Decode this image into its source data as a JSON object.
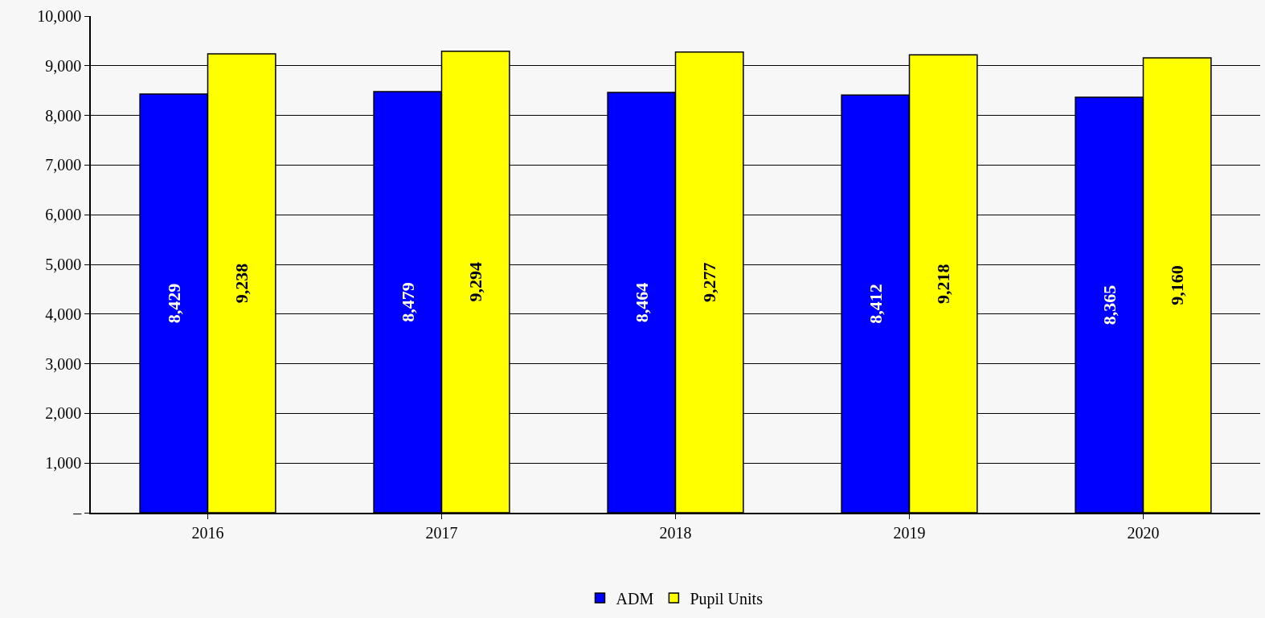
{
  "chart_data": {
    "type": "bar",
    "categories": [
      "2016",
      "2017",
      "2018",
      "2019",
      "2020"
    ],
    "series": [
      {
        "name": "ADM",
        "color": "#0000ff",
        "values": [
          8429,
          8479,
          8464,
          8412,
          8365
        ],
        "value_labels": [
          "8,429",
          "8,479",
          "8,464",
          "8,412",
          "8,365"
        ]
      },
      {
        "name": "Pupil Units",
        "color": "#ffff00",
        "values": [
          9238,
          9294,
          9277,
          9218,
          9160
        ],
        "value_labels": [
          "9,238",
          "9,294",
          "9,277",
          "9,218",
          "9,160"
        ]
      }
    ],
    "ylim": [
      0,
      10000
    ],
    "yticks": [
      {
        "value": 0,
        "label": "–"
      },
      {
        "value": 1000,
        "label": "1,000"
      },
      {
        "value": 2000,
        "label": "2,000"
      },
      {
        "value": 3000,
        "label": "3,000"
      },
      {
        "value": 4000,
        "label": "4,000"
      },
      {
        "value": 5000,
        "label": "5,000"
      },
      {
        "value": 6000,
        "label": "6,000"
      },
      {
        "value": 7000,
        "label": "7,000"
      },
      {
        "value": 8000,
        "label": "8,000"
      },
      {
        "value": 9000,
        "label": "9,000"
      },
      {
        "value": 10000,
        "label": "10,000"
      }
    ],
    "grid": "y",
    "legend": "bottom"
  }
}
